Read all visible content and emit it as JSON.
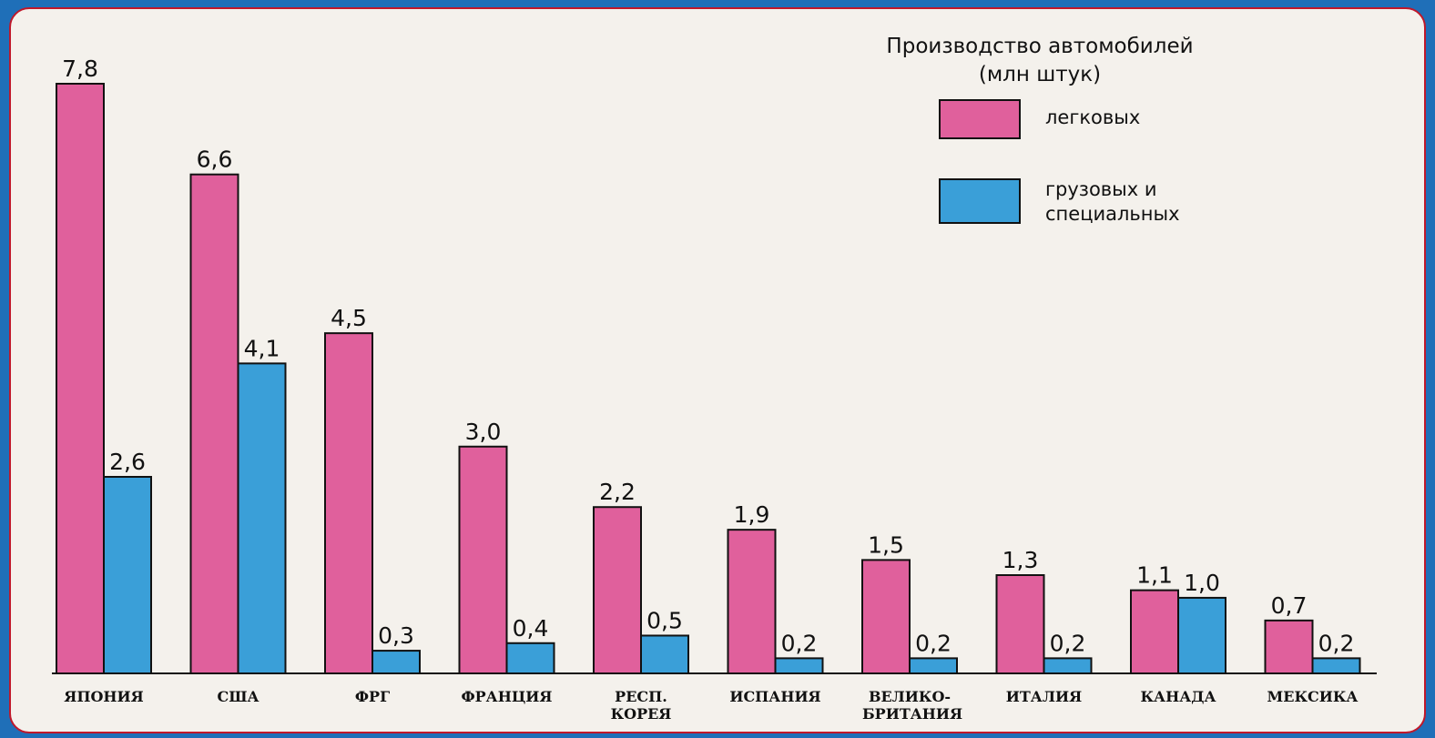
{
  "chart_data": {
    "type": "bar",
    "title": "Производство автомобилей (млн штук)",
    "categories": [
      "ЯПОНИЯ",
      "США",
      "ФРГ",
      "ФРАНЦИЯ",
      "РЕСП. КОРЕЯ",
      "ИСПАНИЯ",
      "ВЕЛИКО-БРИТАНИЯ",
      "ИТАЛИЯ",
      "КАНАДА",
      "МЕКСИКА"
    ],
    "series": [
      {
        "name": "легковых",
        "color": "#e0609c",
        "values": [
          7.8,
          6.6,
          4.5,
          3.0,
          2.2,
          1.9,
          1.5,
          1.3,
          1.1,
          0.7
        ],
        "value_labels": [
          "7,8",
          "6,6",
          "4,5",
          "3,0",
          "2,2",
          "1,9",
          "1,5",
          "1,3",
          "1,1",
          "0,7"
        ]
      },
      {
        "name": "грузовых и специальных",
        "color": "#3a9fd8",
        "values": [
          2.6,
          4.1,
          0.3,
          0.4,
          0.5,
          0.2,
          0.2,
          0.2,
          1.0,
          0.2
        ],
        "value_labels": [
          "2,6",
          "4,1",
          "0,3",
          "0,4",
          "0,5",
          "0,2",
          "0,2",
          "0,2",
          "1,0",
          "0,2"
        ]
      }
    ]
  }
}
